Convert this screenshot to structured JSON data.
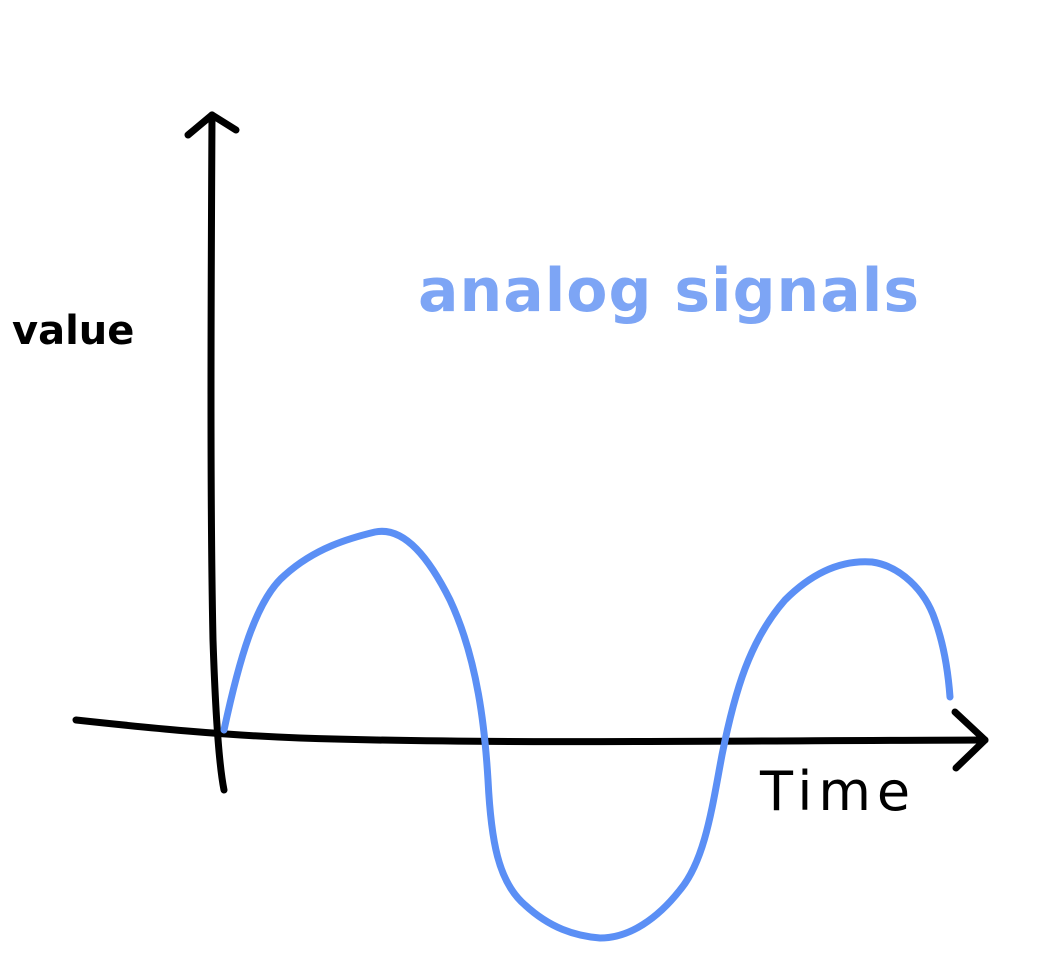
{
  "title": "analog signals",
  "axes": {
    "y_label": "value",
    "x_label": "Time"
  },
  "colors": {
    "signal": "#5b8ff5",
    "title": "#7da5f5",
    "axes": "#000000"
  }
}
